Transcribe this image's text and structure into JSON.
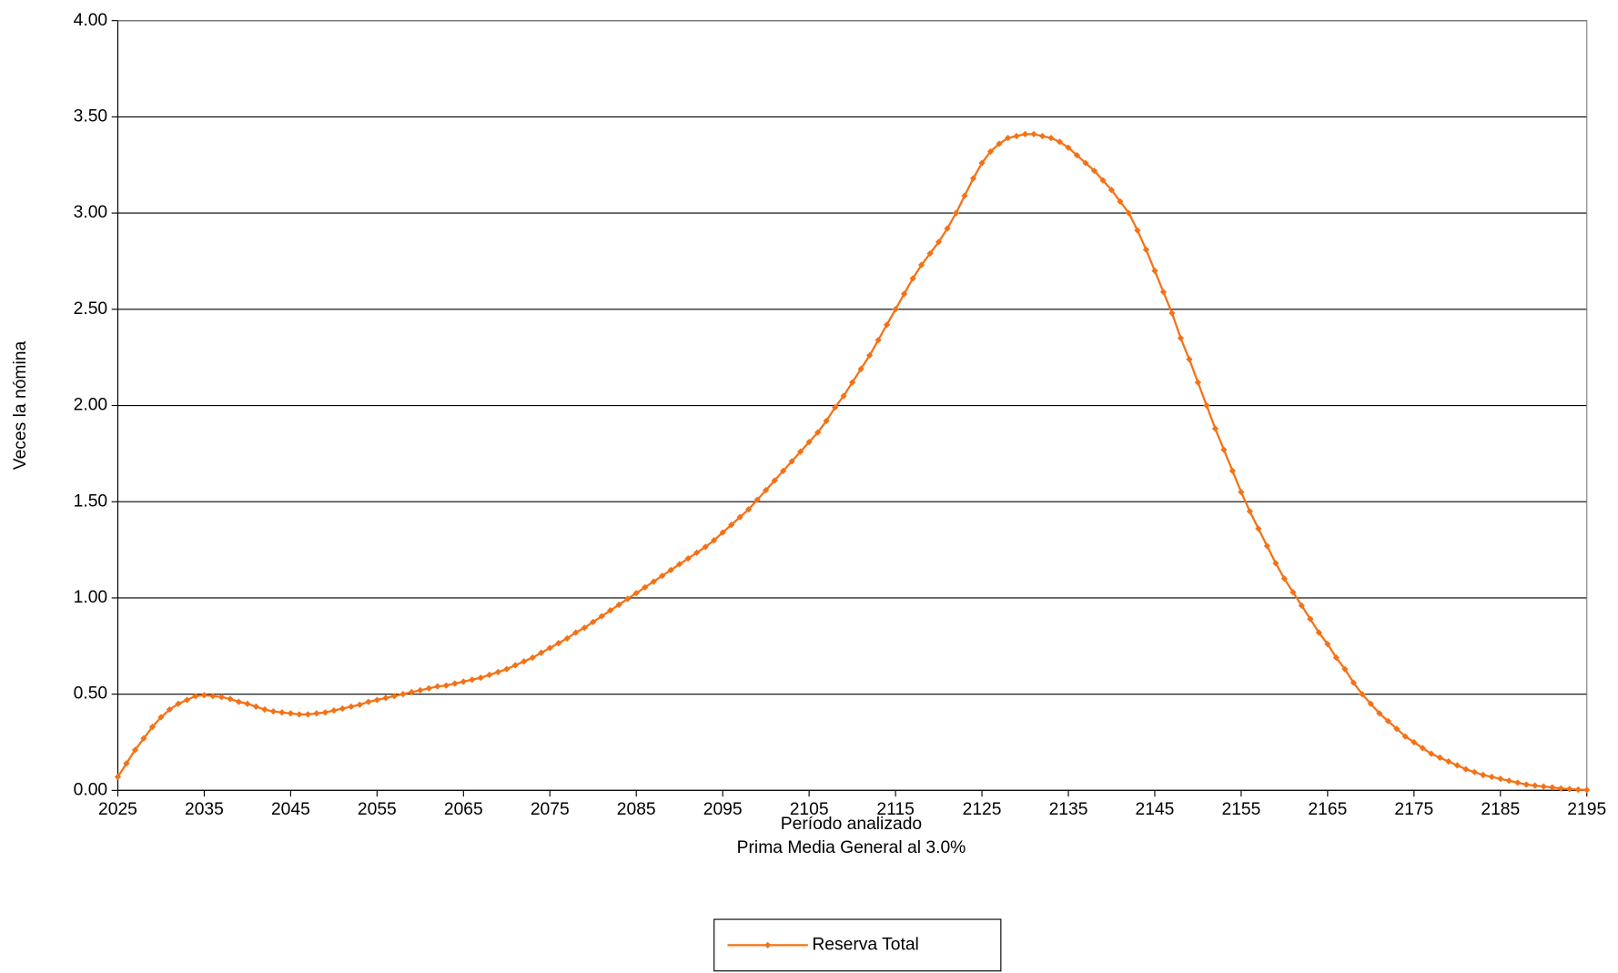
{
  "chart_data": {
    "type": "line",
    "x_label": "Período analizado",
    "subtitle": "Prima Media General al 3.0%",
    "y_label": "Veces la nómina",
    "x": [
      2025,
      2026,
      2027,
      2028,
      2029,
      2030,
      2031,
      2032,
      2033,
      2034,
      2035,
      2036,
      2037,
      2038,
      2039,
      2040,
      2041,
      2042,
      2043,
      2044,
      2045,
      2046,
      2047,
      2048,
      2049,
      2050,
      2051,
      2052,
      2053,
      2054,
      2055,
      2056,
      2057,
      2058,
      2059,
      2060,
      2061,
      2062,
      2063,
      2064,
      2065,
      2066,
      2067,
      2068,
      2069,
      2070,
      2071,
      2072,
      2073,
      2074,
      2075,
      2076,
      2077,
      2078,
      2079,
      2080,
      2081,
      2082,
      2083,
      2084,
      2085,
      2086,
      2087,
      2088,
      2089,
      2090,
      2091,
      2092,
      2093,
      2094,
      2095,
      2096,
      2097,
      2098,
      2099,
      2100,
      2101,
      2102,
      2103,
      2104,
      2105,
      2106,
      2107,
      2108,
      2109,
      2110,
      2111,
      2112,
      2113,
      2114,
      2115,
      2116,
      2117,
      2118,
      2119,
      2120,
      2121,
      2122,
      2123,
      2124,
      2125,
      2126,
      2127,
      2128,
      2129,
      2130,
      2131,
      2132,
      2133,
      2134,
      2135,
      2136,
      2137,
      2138,
      2139,
      2140,
      2141,
      2142,
      2143,
      2144,
      2145,
      2146,
      2147,
      2148,
      2149,
      2150,
      2151,
      2152,
      2153,
      2154,
      2155,
      2156,
      2157,
      2158,
      2159,
      2160,
      2161,
      2162,
      2163,
      2164,
      2165,
      2166,
      2167,
      2168,
      2169,
      2170,
      2171,
      2172,
      2173,
      2174,
      2175,
      2176,
      2177,
      2178,
      2179,
      2180,
      2181,
      2182,
      2183,
      2184,
      2185,
      2186,
      2187,
      2188,
      2189,
      2190,
      2191,
      2192,
      2193,
      2194,
      2195
    ],
    "series": [
      {
        "name": "Reserva Total",
        "color": "#f47216",
        "values": [
          0.07,
          0.14,
          0.21,
          0.27,
          0.33,
          0.38,
          0.42,
          0.45,
          0.47,
          0.49,
          0.495,
          0.49,
          0.485,
          0.475,
          0.46,
          0.45,
          0.435,
          0.42,
          0.41,
          0.405,
          0.4,
          0.395,
          0.395,
          0.4,
          0.405,
          0.415,
          0.425,
          0.435,
          0.445,
          0.46,
          0.47,
          0.48,
          0.49,
          0.5,
          0.51,
          0.52,
          0.53,
          0.54,
          0.545,
          0.555,
          0.565,
          0.575,
          0.585,
          0.6,
          0.615,
          0.63,
          0.65,
          0.67,
          0.69,
          0.715,
          0.74,
          0.765,
          0.79,
          0.82,
          0.845,
          0.875,
          0.905,
          0.935,
          0.965,
          0.995,
          1.025,
          1.055,
          1.085,
          1.115,
          1.145,
          1.175,
          1.205,
          1.235,
          1.265,
          1.3,
          1.34,
          1.38,
          1.42,
          1.46,
          1.51,
          1.56,
          1.61,
          1.66,
          1.71,
          1.76,
          1.81,
          1.86,
          1.92,
          1.99,
          2.05,
          2.12,
          2.19,
          2.26,
          2.34,
          2.42,
          2.5,
          2.58,
          2.66,
          2.73,
          2.79,
          2.85,
          2.92,
          3.0,
          3.09,
          3.18,
          3.26,
          3.32,
          3.36,
          3.39,
          3.4,
          3.41,
          3.41,
          3.4,
          3.39,
          3.37,
          3.34,
          3.3,
          3.26,
          3.22,
          3.17,
          3.12,
          3.06,
          3.0,
          2.91,
          2.81,
          2.7,
          2.59,
          2.48,
          2.35,
          2.24,
          2.12,
          2.0,
          1.88,
          1.77,
          1.66,
          1.55,
          1.45,
          1.36,
          1.27,
          1.18,
          1.1,
          1.03,
          0.96,
          0.89,
          0.82,
          0.76,
          0.69,
          0.63,
          0.56,
          0.5,
          0.45,
          0.4,
          0.36,
          0.32,
          0.28,
          0.25,
          0.22,
          0.19,
          0.17,
          0.15,
          0.13,
          0.11,
          0.095,
          0.08,
          0.07,
          0.06,
          0.05,
          0.04,
          0.03,
          0.025,
          0.02,
          0.015,
          0.01,
          0.007,
          0.004,
          0.002
        ]
      }
    ],
    "xlim": [
      2025,
      2195
    ],
    "xticks": [
      2025,
      2035,
      2045,
      2055,
      2065,
      2075,
      2085,
      2095,
      2105,
      2115,
      2125,
      2135,
      2145,
      2155,
      2165,
      2175,
      2185,
      2195
    ],
    "ylim": [
      0,
      4
    ],
    "yticks": [
      {
        "value": 0,
        "label": "0.00"
      },
      {
        "value": 0.5,
        "label": "0.50"
      },
      {
        "value": 1,
        "label": "1.00"
      },
      {
        "value": 1.5,
        "label": "1.50"
      },
      {
        "value": 2,
        "label": "2.00"
      },
      {
        "value": 2.5,
        "label": "2.50"
      },
      {
        "value": 3,
        "label": "3.00"
      },
      {
        "value": 3.5,
        "label": "3.50"
      },
      {
        "value": 4,
        "label": "4.00"
      }
    ],
    "grid": true
  }
}
